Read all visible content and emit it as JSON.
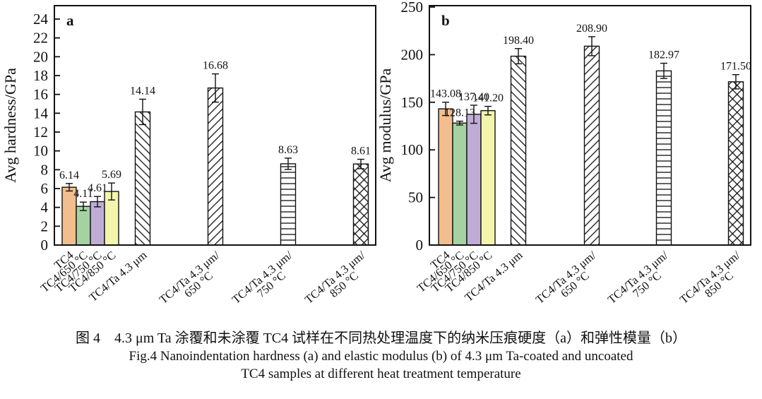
{
  "figure": {
    "caption_zh": "图 4　4.3 μm Ta 涂覆和未涂覆 TC4 试样在不同热处理温度下的纳米压痕硬度（a）和弹性模量（b）",
    "caption_en_line1": "Fig.4 Nanoindentation hardness (a) and elastic modulus (b) of 4.3 μm Ta-coated and uncoated",
    "caption_en_line2": "TC4 samples at different heat treatment temperature"
  },
  "chart_data": [
    {
      "type": "bar",
      "panel_label": "a",
      "title": "",
      "xlabel": "",
      "ylabel": "Avg hardness/GPa",
      "ylim": [
        0,
        24
      ],
      "ytick_step": 2,
      "grid": false,
      "legend": "none",
      "categories": [
        "TC4",
        "TC4/650 °C",
        "TC4/750 °C",
        "TC4/850 °C",
        "TC4/Ta 4.3 μm",
        "TC4/Ta 4.3 μm/\n650 °C",
        "TC4/Ta 4.3 μm/\n750 °C",
        "TC4/Ta 4.3 μm/\n850 °C"
      ],
      "values": [
        6.14,
        4.11,
        4.61,
        5.69,
        14.14,
        16.68,
        8.63,
        8.61
      ],
      "value_labels": [
        "6.14",
        "4.11",
        "4.61",
        "5.69",
        "14.14",
        "16.68",
        "8.63",
        "8.61"
      ],
      "errors": [
        0.4,
        0.45,
        0.55,
        0.9,
        1.35,
        1.5,
        0.6,
        0.5
      ],
      "bar_styles": [
        "solid_orange",
        "solid_green",
        "solid_purple",
        "solid_yellow",
        "hatch_backslash",
        "hatch_slash",
        "hatch_horizontal",
        "hatch_cross"
      ]
    },
    {
      "type": "bar",
      "panel_label": "b",
      "title": "",
      "xlabel": "",
      "ylabel": "Avg modulus/GPa",
      "ylim": [
        0,
        250
      ],
      "ytick_step": 50,
      "grid": false,
      "legend": "none",
      "categories": [
        "TC4",
        "TC4/650 °C",
        "TC4/750 °C",
        "TC4/850 °C",
        "TC4/Ta 4.3 μm",
        "TC4/Ta 4.3 μm/\n650 °C",
        "TC4/Ta 4.3 μm/\n750 °C",
        "TC4/Ta 4.3 μm/\n850 °C"
      ],
      "values": [
        143.08,
        128.13,
        137.4,
        141.2,
        198.4,
        208.9,
        182.97,
        171.5
      ],
      "value_labels": [
        "143.08",
        "128.13",
        "137.40",
        "141.20",
        "198.40",
        "208.90",
        "182.97",
        "171.50"
      ],
      "errors": [
        7,
        2,
        9.5,
        4.5,
        8,
        10,
        8,
        7.5
      ],
      "bar_styles": [
        "solid_orange",
        "solid_green",
        "solid_purple",
        "solid_yellow",
        "hatch_backslash",
        "hatch_slash",
        "hatch_horizontal",
        "hatch_cross"
      ]
    }
  ],
  "style_colors": {
    "solid_orange": "#F2BE8D",
    "solid_green": "#A5D2A1",
    "solid_purple": "#BFADD7",
    "solid_yellow": "#F3F5AD",
    "outline": "#111111",
    "background": "#ffffff"
  }
}
